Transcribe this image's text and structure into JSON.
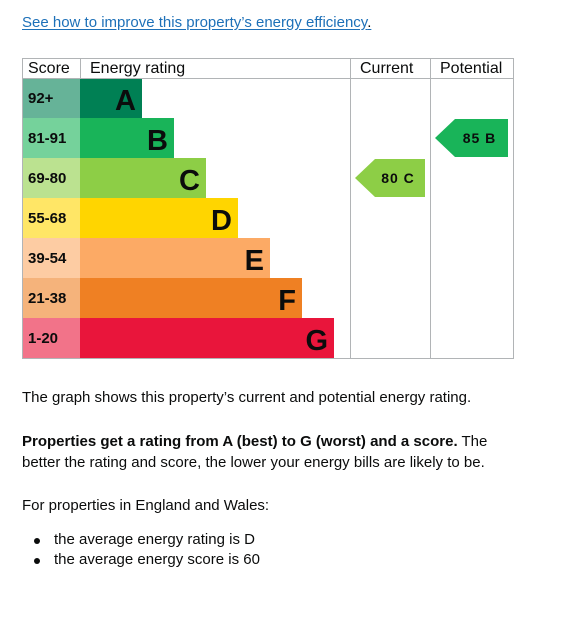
{
  "link": {
    "text": "See how to improve this property’s energy efficiency",
    "suffix": "."
  },
  "chart_data": {
    "type": "table",
    "headers": {
      "score": "Score",
      "rating": "Energy rating",
      "current": "Current",
      "potential": "Potential"
    },
    "bands": [
      {
        "score": "92+",
        "letter": "A",
        "color": "#008054",
        "score_bg": "#66b398"
      },
      {
        "score": "81-91",
        "letter": "B",
        "color": "#19b459",
        "score_bg": "#75d29b"
      },
      {
        "score": "69-80",
        "letter": "C",
        "color": "#8dce46",
        "score_bg": "#bbe290"
      },
      {
        "score": "55-68",
        "letter": "D",
        "color": "#ffd500",
        "score_bg": "#ffe666"
      },
      {
        "score": "39-54",
        "letter": "E",
        "color": "#fcaa65",
        "score_bg": "#fdcca3"
      },
      {
        "score": "21-38",
        "letter": "F",
        "color": "#ef8023",
        "score_bg": "#f5b37b"
      },
      {
        "score": "1-20",
        "letter": "G",
        "color": "#e9153b",
        "score_bg": "#f27389"
      }
    ],
    "current": {
      "value": 80,
      "letter": "C",
      "label": "80 C",
      "band_index": 2,
      "color": "#8dce46"
    },
    "potential": {
      "value": 85,
      "letter": "B",
      "label": "85 B",
      "band_index": 1,
      "color": "#19b459"
    }
  },
  "text": {
    "graph_desc": "The graph shows this property’s current and potential energy rating.",
    "rating_bold": "Properties get a rating from A (best) to G (worst) and a score.",
    "rating_rest": " The better the rating and score, the lower your energy bills are likely to be.",
    "england_wales": "For properties in England and Wales:",
    "bullets": [
      "the average energy rating is D",
      "the average energy score is 60"
    ]
  }
}
